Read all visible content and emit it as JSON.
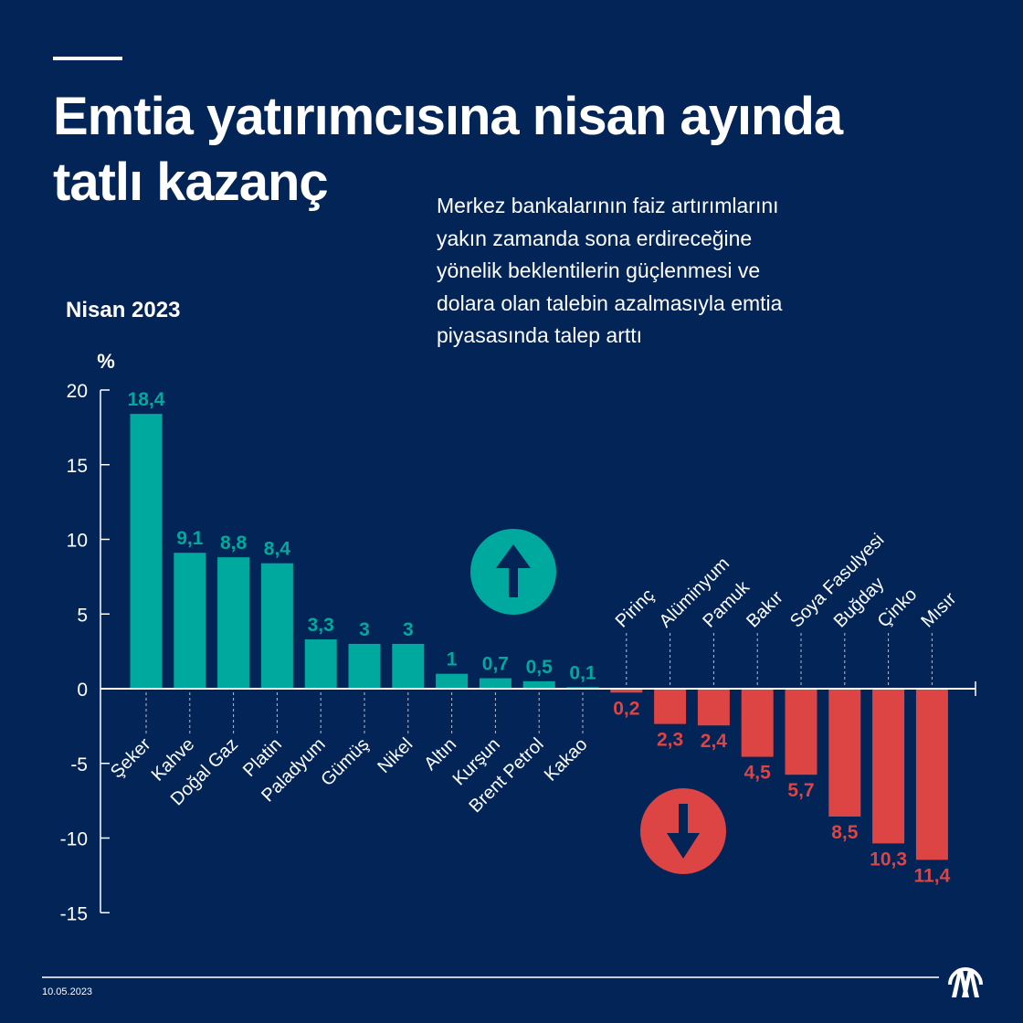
{
  "title_line1": "Emtia yatırımcısına nisan ayında",
  "title_line2": "tatlı kazanç",
  "description": "Merkez bankalarının faiz artırımlarını yakın zamanda sona erdireceğine yönelik beklentilerin güçlenmesi ve dolara olan talebin azalmasıyla emtia piyasasında talep arttı",
  "date": "10.05.2023",
  "logo_text": "AA",
  "colors": {
    "background": "#022456",
    "positive": "#00a99d",
    "negative": "#dd4444",
    "axis": "#ffffff"
  },
  "chart_data": {
    "type": "bar",
    "subtitle": "Nisan 2023",
    "ylabel": "%",
    "ylim": [
      -15,
      20
    ],
    "yticks": [
      20,
      15,
      10,
      5,
      0,
      -5,
      -10,
      -15
    ],
    "grid": false,
    "categories": [
      "Şeker",
      "Kahve",
      "Doğal Gaz",
      "Platin",
      "Paladyum",
      "Gümüş",
      "Nikel",
      "Altın",
      "Kurşun",
      "Brent Petrol",
      "Kakao",
      "Pirinç",
      "Alüminyum",
      "Pamuk",
      "Bakır",
      "Soya Fasulyesi",
      "Buğday",
      "Çinko",
      "Mısır"
    ],
    "values": [
      18.4,
      9.1,
      8.8,
      8.4,
      3.3,
      3,
      3,
      1,
      0.7,
      0.5,
      0.1,
      -0.2,
      -2.3,
      -2.4,
      -4.5,
      -5.7,
      -8.5,
      -10.3,
      -11.4
    ],
    "data_labels": [
      "18,4",
      "9,1",
      "8,8",
      "8,4",
      "3,3",
      "3",
      "3",
      "1",
      "0,7",
      "0,5",
      "0,1",
      "0,2",
      "2,3",
      "2,4",
      "4,5",
      "5,7",
      "8,5",
      "10,3",
      "11,4"
    ],
    "icons": [
      "arrow-up-icon",
      "arrow-down-icon"
    ]
  }
}
